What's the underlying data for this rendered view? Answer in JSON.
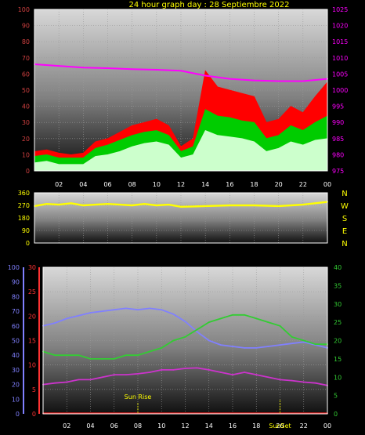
{
  "title": "24 hour graph day : 28 Septiembre 2022",
  "colors": {
    "title": "#ffff00",
    "left_axis": "#d04040",
    "right_axis": "#ff00ff",
    "x_axis": "#ffffff",
    "wind_axis": "#ffff00",
    "humidity_axis": "#8080ff",
    "temp_axis": "#ff3333",
    "green_axis": "#33cc33",
    "sun_label": "#ffff00"
  },
  "chart_data": [
    {
      "type": "area",
      "ylim_left": [
        0,
        100
      ],
      "ylim_right": [
        975,
        1025
      ],
      "y_ticks_left": [
        "0",
        "10",
        "20",
        "30",
        "40",
        "50",
        "60",
        "70",
        "80",
        "90",
        "100"
      ],
      "y_ticks_right": [
        "975",
        "980",
        "985",
        "990",
        "995",
        "1000",
        "1005",
        "1010",
        "1015",
        "1020",
        "1025"
      ],
      "x_ticks": [
        "02",
        "04",
        "06",
        "08",
        "10",
        "12",
        "14",
        "16",
        "18",
        "20",
        "22",
        "00"
      ],
      "x_hours": [
        2,
        4,
        6,
        8,
        10,
        12,
        14,
        16,
        18,
        20,
        22,
        24
      ],
      "series": [
        {
          "color": "#ff0000",
          "axis": "left",
          "x": [
            0,
            1,
            2,
            3,
            4,
            5,
            6,
            7,
            8,
            9,
            10,
            11,
            12,
            13,
            14,
            15,
            16,
            17,
            18,
            19,
            20,
            21,
            22,
            23,
            24
          ],
          "y": [
            12,
            13,
            11,
            10,
            11,
            18,
            20,
            24,
            28,
            30,
            32,
            28,
            15,
            20,
            62,
            52,
            50,
            48,
            46,
            30,
            32,
            40,
            36,
            46,
            55
          ]
        },
        {
          "color": "#00cc00",
          "axis": "left",
          "x": [
            0,
            1,
            2,
            3,
            4,
            5,
            6,
            7,
            8,
            9,
            10,
            11,
            12,
            13,
            14,
            15,
            16,
            17,
            18,
            19,
            20,
            21,
            22,
            23,
            24
          ],
          "y": [
            9,
            10,
            8,
            8,
            8,
            14,
            16,
            19,
            22,
            24,
            25,
            22,
            12,
            15,
            38,
            34,
            33,
            31,
            30,
            20,
            22,
            28,
            25,
            30,
            34
          ]
        },
        {
          "color": "#ccffcc",
          "axis": "left",
          "x": [
            0,
            1,
            2,
            3,
            4,
            5,
            6,
            7,
            8,
            9,
            10,
            11,
            12,
            13,
            14,
            15,
            16,
            17,
            18,
            19,
            20,
            21,
            22,
            23,
            24
          ],
          "y": [
            5,
            6,
            4,
            4,
            4,
            9,
            10,
            12,
            15,
            17,
            18,
            16,
            8,
            10,
            25,
            22,
            21,
            20,
            18,
            12,
            14,
            18,
            16,
            19,
            20
          ]
        },
        {
          "color": "#ff00ff",
          "axis": "right",
          "x": [
            0,
            2,
            4,
            6,
            8,
            10,
            12,
            14,
            16,
            18,
            20,
            22,
            24
          ],
          "y": [
            1008,
            1007.5,
            1007,
            1006.8,
            1006.5,
            1006.3,
            1006,
            1004.5,
            1003.5,
            1003,
            1002.8,
            1002.8,
            1003.5
          ]
        }
      ]
    },
    {
      "type": "line",
      "ylim": [
        0,
        360
      ],
      "y_ticks": [
        "0",
        "90",
        "180",
        "270",
        "360"
      ],
      "compass": [
        "N",
        "W",
        "S",
        "E",
        "N"
      ],
      "series": [
        {
          "color": "#ffff00",
          "x": [
            0,
            1,
            2,
            3,
            4,
            5,
            6,
            7,
            8,
            9,
            10,
            11,
            12,
            13,
            14,
            16,
            18,
            20,
            22,
            24
          ],
          "y": [
            265,
            280,
            275,
            285,
            270,
            275,
            280,
            275,
            270,
            280,
            270,
            275,
            260,
            262,
            265,
            270,
            270,
            265,
            275,
            295
          ]
        }
      ]
    },
    {
      "type": "line",
      "ylim_humidity": [
        0,
        100
      ],
      "ylim_temp": [
        0,
        30
      ],
      "ylim_right": [
        0,
        40
      ],
      "y_ticks_humidity": [
        "0",
        "10",
        "20",
        "30",
        "40",
        "50",
        "60",
        "70",
        "80",
        "90",
        "100"
      ],
      "y_ticks_temp": [
        "0",
        "5",
        "10",
        "15",
        "20",
        "25",
        "30"
      ],
      "y_ticks_right": [
        "0",
        "5",
        "10",
        "15",
        "20",
        "25",
        "30",
        "35",
        "40"
      ],
      "x_ticks": [
        "02",
        "04",
        "06",
        "08",
        "10",
        "12",
        "14",
        "16",
        "18",
        "20",
        "22",
        "00"
      ],
      "sun_rise_label": "Sun Rise",
      "sun_set_label": "SunSet",
      "sun_rise_hour": 8,
      "sun_set_hour": 20,
      "series": [
        {
          "color": "#8080ff",
          "axis": "humidity",
          "x": [
            0,
            1,
            2,
            3,
            4,
            5,
            6,
            7,
            8,
            9,
            10,
            11,
            12,
            13,
            14,
            15,
            16,
            17,
            18,
            19,
            20,
            21,
            22,
            23,
            24
          ],
          "y": [
            60,
            62,
            65,
            67,
            69,
            70,
            71,
            72,
            71,
            72,
            71,
            68,
            63,
            56,
            50,
            47,
            46,
            45,
            45,
            46,
            47,
            48,
            49,
            47,
            45
          ]
        },
        {
          "color": "#33cc33",
          "axis": "right",
          "x": [
            0,
            1,
            2,
            3,
            4,
            5,
            6,
            7,
            8,
            9,
            10,
            11,
            12,
            13,
            14,
            15,
            16,
            17,
            18,
            19,
            20,
            21,
            22,
            23,
            24
          ],
          "y": [
            17,
            16,
            16,
            16,
            15,
            15,
            15,
            16,
            16,
            17,
            18,
            20,
            21,
            23,
            25,
            26,
            27,
            27,
            26,
            25,
            24,
            21,
            20,
            19,
            19
          ]
        },
        {
          "color": "#cc33cc",
          "axis": "temp",
          "x": [
            0,
            1,
            2,
            3,
            4,
            5,
            6,
            7,
            8,
            9,
            10,
            11,
            12,
            13,
            14,
            15,
            16,
            17,
            18,
            19,
            20,
            21,
            22,
            23,
            24
          ],
          "y": [
            6,
            6.3,
            6.5,
            7,
            7,
            7.5,
            8,
            8,
            8.2,
            8.5,
            9,
            9,
            9.3,
            9.4,
            9,
            8.5,
            8,
            8.5,
            8,
            7.5,
            7,
            6.8,
            6.5,
            6.3,
            5.8
          ]
        },
        {
          "color": "#ff2020",
          "axis": "temp",
          "x": [
            0,
            24
          ],
          "y": [
            0.1,
            0.1
          ]
        }
      ]
    }
  ]
}
